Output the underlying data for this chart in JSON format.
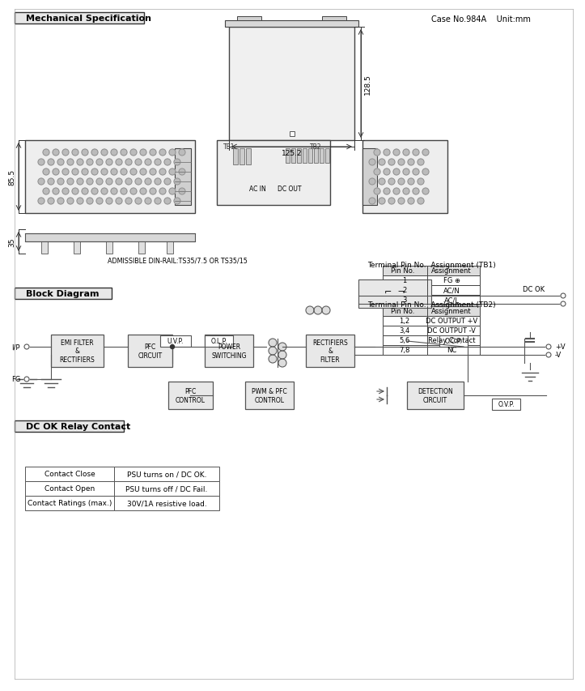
{
  "title_mech": "Mechanical Specification",
  "title_block": "Block Diagram",
  "title_relay": "DC OK Relay Contact",
  "case_info": "Case No.984A    Unit:mm",
  "bg_color": "#ffffff",
  "border_color": "#000000",
  "box_color": "#d0d0d0",
  "dim_125_2": "125.2",
  "dim_128_5": "128.5",
  "dim_85_5": "85.5",
  "dim_35": "35",
  "tb1_title": "Terminal Pin No.  Assignment (TB1)",
  "tb1_headers": [
    "Pin No.",
    "Assignment"
  ],
  "tb1_rows": [
    [
      "1",
      "FG ⊕"
    ],
    [
      "2",
      "AC/N"
    ],
    [
      "3",
      "AC/L"
    ]
  ],
  "tb2_title": "Terminal Pin No.  Assignment (TB2)",
  "tb2_headers": [
    "Pin No.",
    "Assignment"
  ],
  "tb2_rows": [
    [
      "1,2",
      "DC OUTPUT +V"
    ],
    [
      "3,4",
      "DC OUTPUT -V"
    ],
    [
      "5,6",
      "Relay Contact"
    ],
    [
      "7,8",
      "NC"
    ]
  ],
  "relay_table_headers": [
    "",
    ""
  ],
  "relay_table_rows": [
    [
      "Contact Close",
      "PSU turns on / DC OK."
    ],
    [
      "Contact Open",
      "PSU turns off / DC Fail."
    ],
    [
      "Contact Ratings (max.)",
      "30V/1A resistive load."
    ]
  ],
  "din_rail_text": "ADMISSIBLE DIN-RAIL:TS35/7.5 OR TS35/15",
  "block_labels": [
    "EMI FILTER\n&\nRECTIFIERS",
    "PFC\nCIRCUIT",
    "POWER\nSWITCHING",
    "RECTIFIERS\n&\nFILTER",
    "PFC\nCONTROL",
    "PWM & PFC\nCONTROL",
    "DETECTION\nCIRCUIT"
  ],
  "small_labels": [
    "U.V.P.",
    "O.L.P.",
    "O.C.P.",
    "O.V.P."
  ],
  "io_labels": [
    "I/P",
    "FG",
    "DC OK",
    "+V",
    "-V"
  ]
}
